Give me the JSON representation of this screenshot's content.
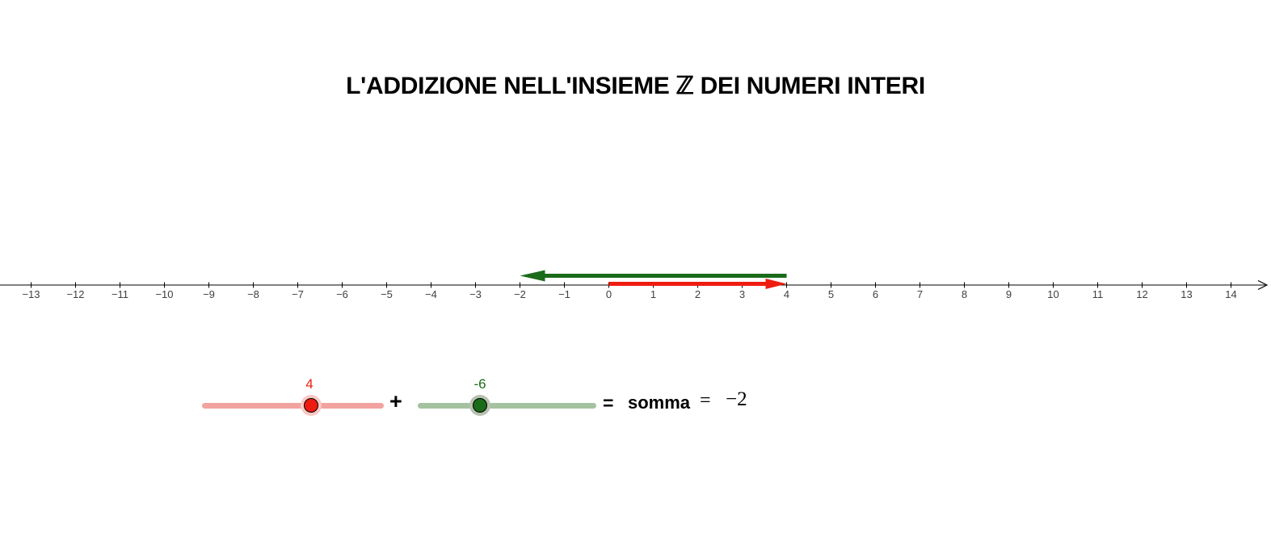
{
  "title": {
    "text": "L'ADDIZIONE NELL'INSIEME ℤ DEI NUMERI INTERI"
  },
  "colors": {
    "background": "#ffffff",
    "axis": "#000000",
    "tick_label": "#404040",
    "red": "#ee1c10",
    "red_track": "#f2a3a0",
    "red_halo": "#fac9c6",
    "green": "#1a6b1a",
    "green_track": "#a4c2a0",
    "green_halo": "#b7c1b0"
  },
  "number_line": {
    "min": -13,
    "max": 14,
    "tick_step": 1,
    "tick_labels": [
      "−13",
      "−12",
      "−11",
      "−10",
      "−9",
      "−8",
      "−7",
      "−6",
      "−5",
      "−4",
      "−3",
      "−2",
      "−1",
      "0",
      "1",
      "2",
      "3",
      "4",
      "5",
      "6",
      "7",
      "8",
      "9",
      "10",
      "11",
      "12",
      "13",
      "14"
    ]
  },
  "vectors": [
    {
      "name": "addend1",
      "value": 4,
      "from": 0,
      "to": 4,
      "color": "#ee1c10"
    },
    {
      "name": "addend2",
      "value": -6,
      "from": 4,
      "to": -2,
      "color": "#1a6b1a"
    }
  ],
  "sliders": {
    "addend1": {
      "label": "4",
      "value": 4,
      "color": "#ee1c10",
      "track_color": "#f2a3a0",
      "halo_color": "#fac9c6"
    },
    "addend2": {
      "label": "-6",
      "value": -6,
      "color": "#1a6b1a",
      "track_color": "#a4c2a0",
      "halo_color": "#b7c1b0"
    }
  },
  "expression": {
    "plus": "+",
    "equals1": "=",
    "sum_label": "somma",
    "equals2": "=",
    "result": "−2"
  }
}
